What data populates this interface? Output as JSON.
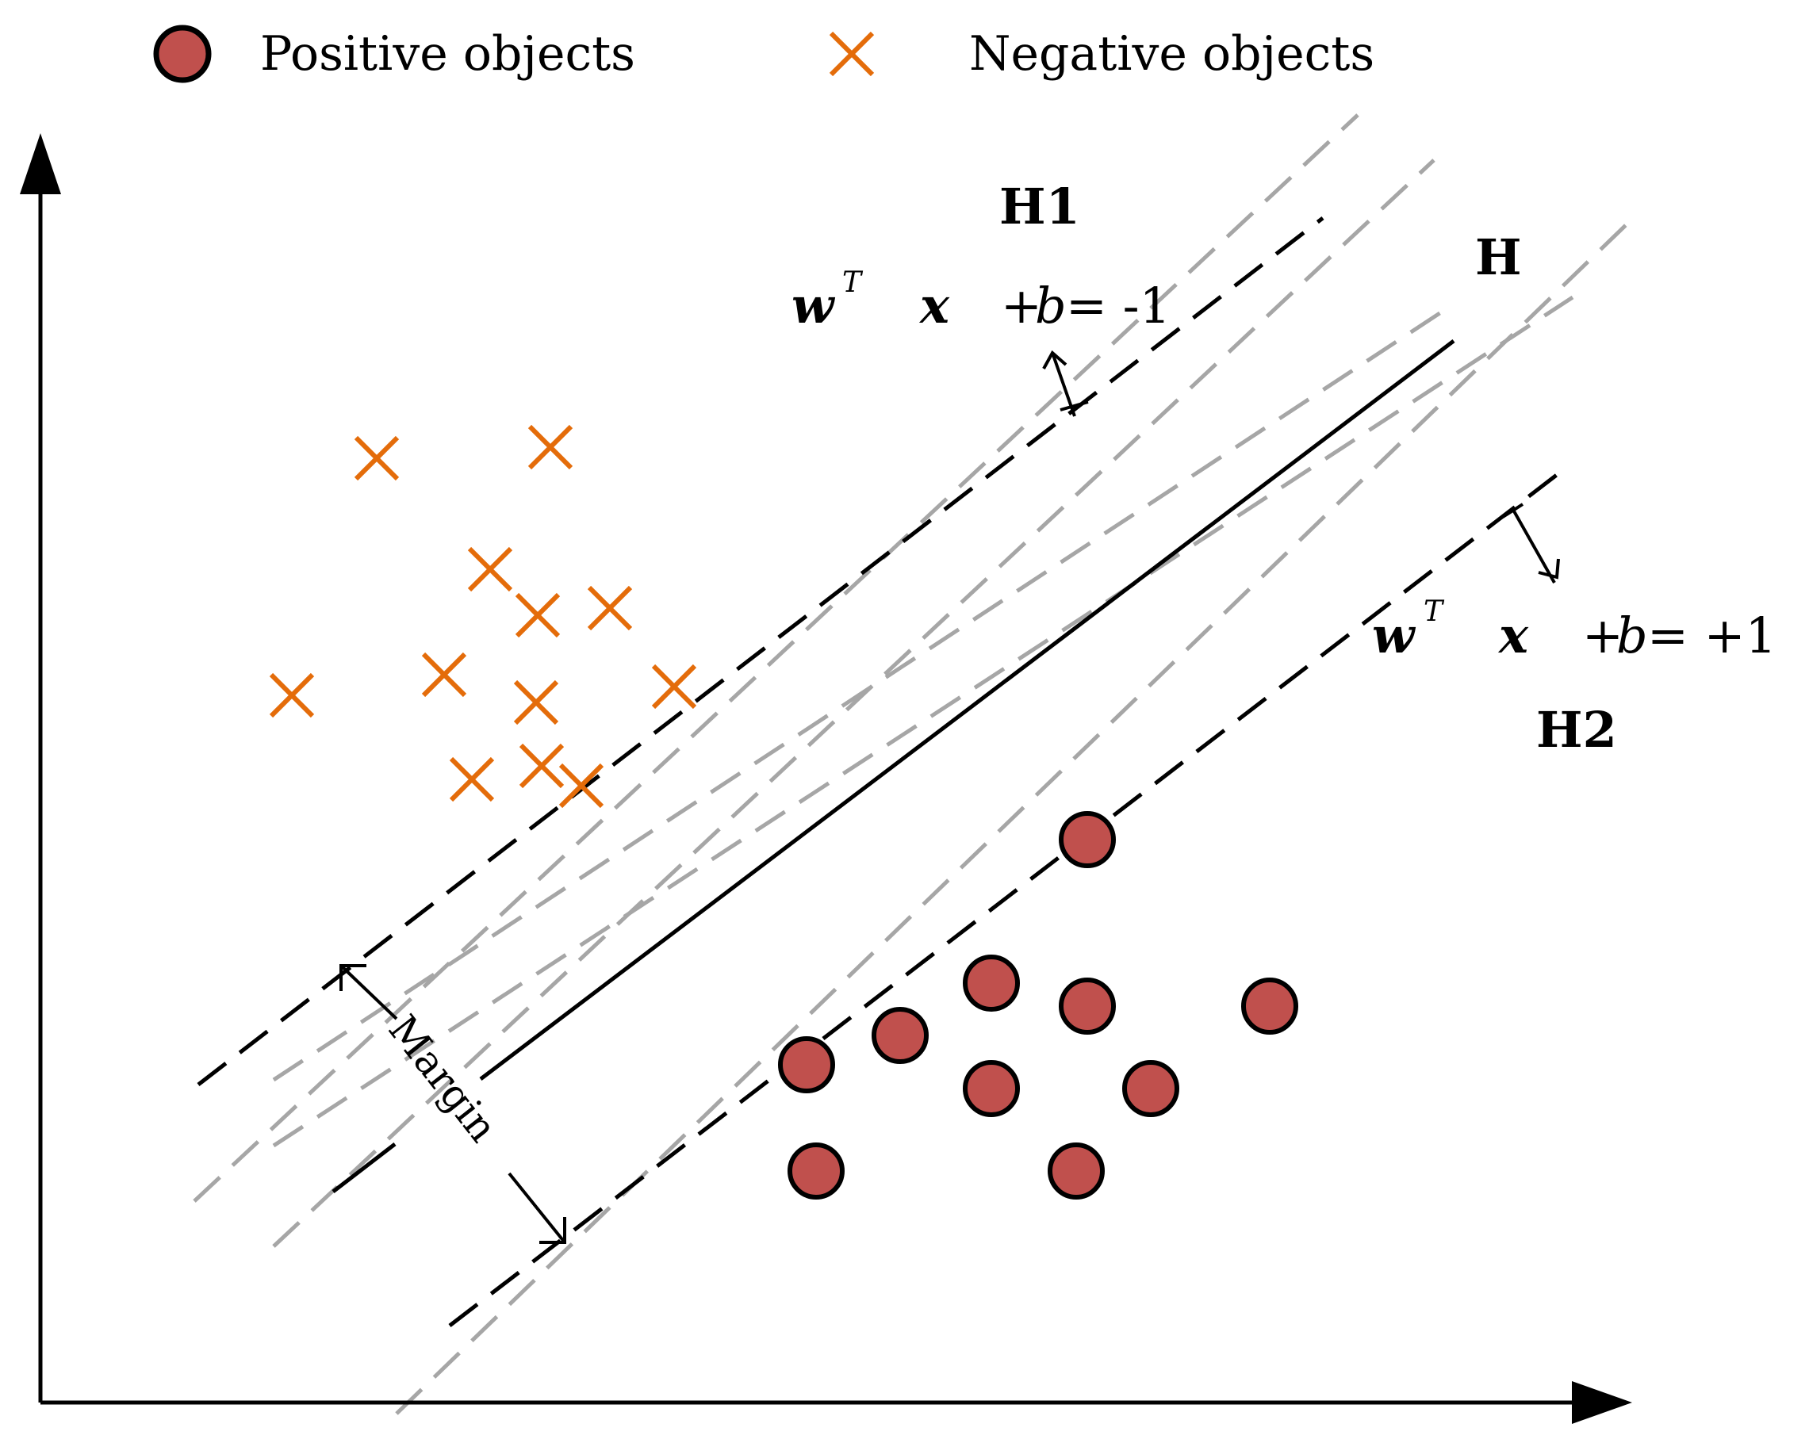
{
  "legend": {
    "positive_label": "Positive objects",
    "negative_label": "Negative objects"
  },
  "labels": {
    "h1": "H1",
    "h": "H",
    "h2": "H2",
    "margin": "Margin"
  },
  "equations": {
    "upper": {
      "w": "w",
      "sup": "T",
      "x": "x",
      "plus": "+",
      "b": "b",
      "rhs": "= -1"
    },
    "lower": {
      "w": "w",
      "sup": "T",
      "x": "x",
      "plus": "+",
      "b": "b",
      "rhs": "= +1"
    }
  },
  "colors": {
    "positive_fill": "#c0504d",
    "positive_stroke": "#000000",
    "negative_stroke": "#e46c0a",
    "gray_line": "#a6a6a6",
    "axis": "#000000"
  }
}
